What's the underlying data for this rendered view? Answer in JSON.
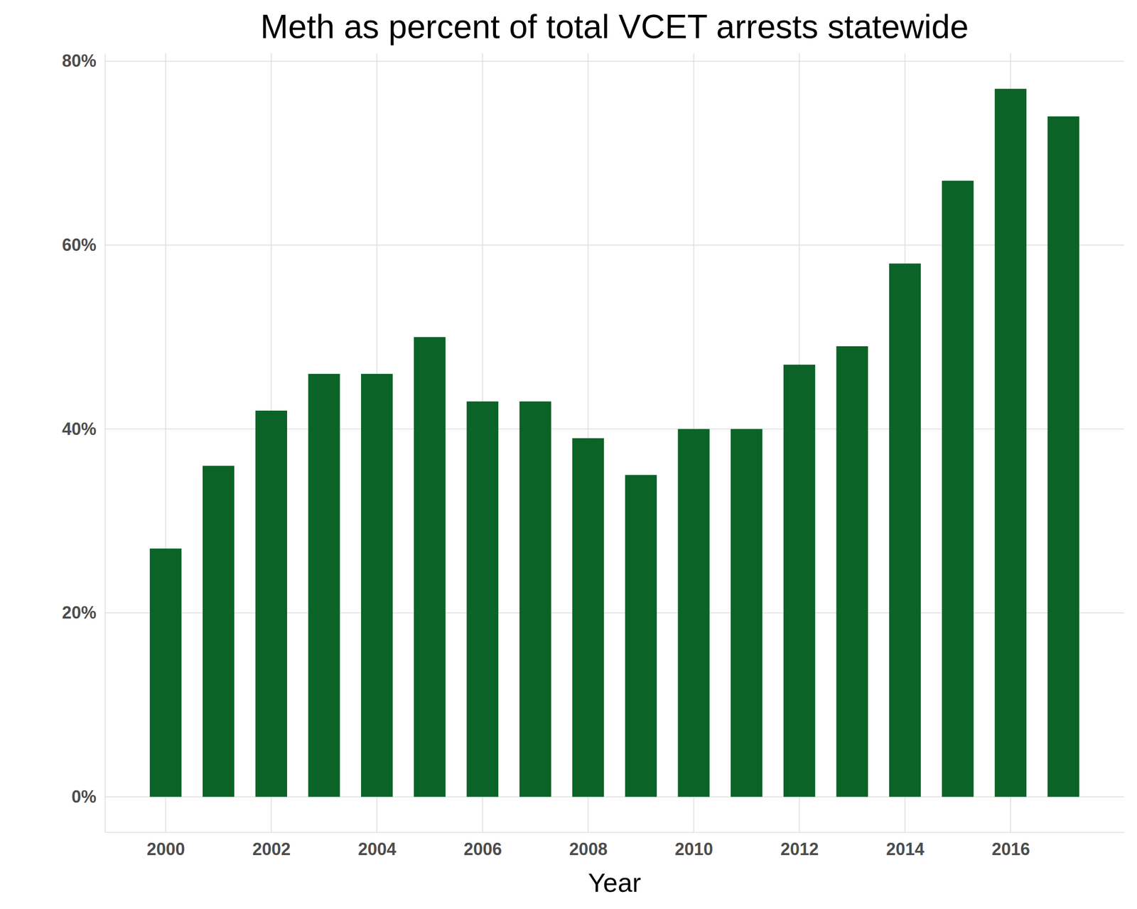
{
  "chart_data": {
    "type": "bar",
    "title": "Meth as percent of total VCET arrests statewide",
    "x_label": "Year",
    "x": [
      2000,
      2001,
      2002,
      2003,
      2004,
      2005,
      2006,
      2007,
      2008,
      2009,
      2010,
      2011,
      2012,
      2013,
      2014,
      2015,
      2016,
      2017
    ],
    "values": [
      27,
      36,
      42,
      46,
      46,
      50,
      43,
      43,
      39,
      35,
      40,
      40,
      47,
      49,
      58,
      67,
      77,
      74
    ],
    "color": "#0b6327",
    "xlim": [
      1998.85,
      2018.15
    ],
    "xticks": [
      2000,
      2002,
      2004,
      2006,
      2008,
      2010,
      2012,
      2014,
      2016
    ],
    "ylim": [
      -3.85,
      80.85
    ],
    "yticks": [
      {
        "value": 0,
        "label": "0%"
      },
      {
        "value": 20,
        "label": "20%"
      },
      {
        "value": 40,
        "label": "40%"
      },
      {
        "value": 60,
        "label": "60%"
      },
      {
        "value": 80,
        "label": "80%"
      }
    ],
    "grid": true
  }
}
